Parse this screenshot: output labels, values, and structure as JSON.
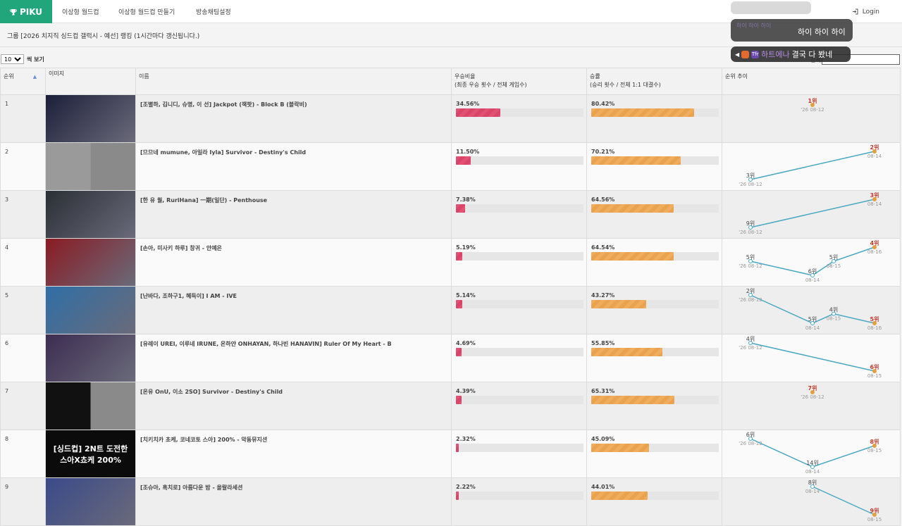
{
  "brand": {
    "name": "PIKU",
    "logo_icon": "trophy-icon",
    "color": "#20a67a"
  },
  "nav": [
    {
      "label": "이상형 월드컵"
    },
    {
      "label": "이상형 월드컵 만들기"
    },
    {
      "label": "방송채팅설정"
    }
  ],
  "login": {
    "label": "Login",
    "icon": "login-icon"
  },
  "page": {
    "headline": "그룹 [2026 치지직 싱드컵 갤럭시 - 예선] 랭킹 (1시간마다 갱신됩니다.)"
  },
  "per_page": {
    "selected": "10",
    "suffix": "씩 보기"
  },
  "search": {
    "label": "검색:",
    "value": ""
  },
  "table": {
    "headers": {
      "rank": "순위",
      "image": "이미지",
      "name": "이름",
      "win_rate": "우승비율",
      "win_rate_sub": "(최종 우승 횟수 / 전체 게임수)",
      "match_rate": "승률",
      "match_rate_sub": "(승리 횟수 / 전체 1:1 대결수)",
      "trend": "순위 추이"
    },
    "rows": [
      {
        "rank": "1",
        "name": "[조별하, 김니디, 슈명, 이 선] Jackpot (잭팟) - Block B (블락비)",
        "win": "34.56%",
        "winv": 34.56,
        "match": "80.42%",
        "matchv": 80.42,
        "trend": [
          {
            "rank": "1위",
            "date": "'26 08-12",
            "latest": true
          }
        ],
        "thumb_bg": "#1c1f3a"
      },
      {
        "rank": "2",
        "name": "[므므네 mumune, 아일라 Iyla] Survivor - Destiny's Child",
        "win": "11.50%",
        "winv": 11.5,
        "match": "70.21%",
        "matchv": 70.21,
        "trend": [
          {
            "rank": "3위",
            "date": "'26 08-12"
          },
          {
            "rank": "2위",
            "date": "08-14",
            "latest": true
          }
        ],
        "thumb_bg": "#9a9a9a"
      },
      {
        "rank": "3",
        "name": "[한 유 월, RuriHana] 一期(일단) - Penthouse",
        "win": "7.38%",
        "winv": 7.38,
        "match": "64.56%",
        "matchv": 64.56,
        "trend": [
          {
            "rank": "9위",
            "date": "'26 08-12"
          },
          {
            "rank": "3위",
            "date": "08-14",
            "latest": true
          }
        ],
        "thumb_bg": "#2a2f35"
      },
      {
        "rank": "4",
        "name": "[손아, 미사키 하루] 창귀 - 안예은",
        "win": "5.19%",
        "winv": 5.19,
        "match": "64.54%",
        "matchv": 64.54,
        "trend": [
          {
            "rank": "5위",
            "date": "'26 08-12"
          },
          {
            "rank": "6위",
            "date": "08-14"
          },
          {
            "rank": "5위",
            "date": "08-15"
          },
          {
            "rank": "4위",
            "date": "08-16",
            "latest": true
          }
        ],
        "thumb_bg": "#8a1b22"
      },
      {
        "rank": "5",
        "name": "[난바다, 조하구1, 혜득이] I AM - IVE",
        "win": "5.14%",
        "winv": 5.14,
        "match": "43.27%",
        "matchv": 43.27,
        "trend": [
          {
            "rank": "2위",
            "date": "'26 08-12"
          },
          {
            "rank": "5위",
            "date": "08-14"
          },
          {
            "rank": "4위",
            "date": "08-15"
          },
          {
            "rank": "5위",
            "date": "08-16",
            "latest": true
          }
        ],
        "thumb_bg": "#2f6fa6"
      },
      {
        "rank": "6",
        "name": "[유레이 UREI, 이루네 IRUNE, 온하얀 ONHAYAN, 하나빈 HANAVIN] Ruler Of My Heart - B",
        "win": "4.69%",
        "winv": 4.69,
        "match": "55.85%",
        "matchv": 55.85,
        "trend": [
          {
            "rank": "4위",
            "date": "'26 08-12"
          },
          {
            "rank": "6위",
            "date": "08-15",
            "latest": true
          }
        ],
        "thumb_bg": "#3d2d52"
      },
      {
        "rank": "7",
        "name": "[온유 OnU, 이소 2SO] Survivor - Destiny's Child",
        "win": "4.39%",
        "winv": 4.39,
        "match": "65.31%",
        "matchv": 65.31,
        "trend": [
          {
            "rank": "7위",
            "date": "'26 08-12",
            "latest": true
          }
        ],
        "thumb_bg": "#111111"
      },
      {
        "rank": "8",
        "name": "[치키치카 초케, 코네코토 스아] 200% - 악동뮤지션",
        "win": "2.32%",
        "winv": 2.32,
        "match": "45.09%",
        "matchv": 45.09,
        "trend": [
          {
            "rank": "6위",
            "date": "'26 08-12"
          },
          {
            "rank": "14위",
            "date": "08-14"
          },
          {
            "rank": "8위",
            "date": "08-15",
            "latest": true
          }
        ],
        "thumb_bg": "#0b0b0b",
        "thumb_text": "[싱드컵] 2N트 도전한 스아X쵸케 200%"
      },
      {
        "rank": "9",
        "name": "[조슈아, 흑치로] 아름다운 밤 - 올랄라세션",
        "win": "2.22%",
        "winv": 2.22,
        "match": "44.01%",
        "matchv": 44.01,
        "trend": [
          {
            "rank": "8위",
            "date": "08-14"
          },
          {
            "rank": "9위",
            "date": "08-15",
            "latest": true
          }
        ],
        "thumb_bg": "#3a4a8a"
      }
    ]
  },
  "chat": [
    {
      "name": "하이 하이 하이",
      "text": "하이 하이 하이"
    },
    {
      "name": "하트에나",
      "badge": "Tfr",
      "text": "결국 다 봤네"
    }
  ],
  "colors": {
    "win_bar": "#e05173",
    "match_bar": "#f0ad5e",
    "trend_line": "#4aa8c0",
    "trend_latest": "#c0392b",
    "trend_dot": "#e0a040"
  }
}
